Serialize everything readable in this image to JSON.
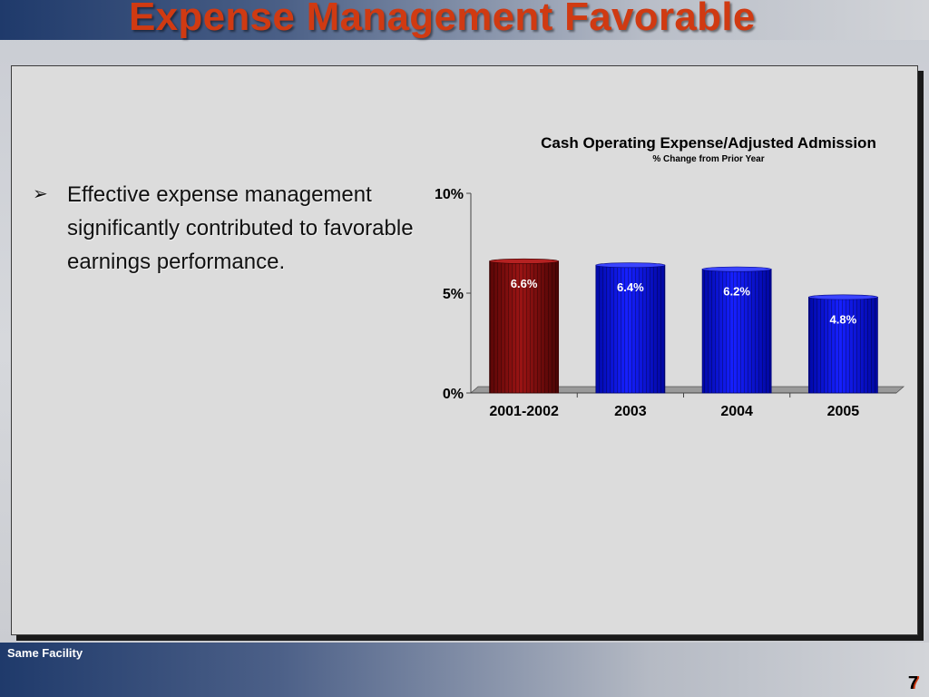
{
  "slide": {
    "title": "Expense Management Favorable",
    "bullet": "Effective expense management significantly contributed to favorable earnings performance.",
    "bullet_symbol": "➢",
    "footer_note": "Same Facility",
    "page_number": "7"
  },
  "colors": {
    "title": "#d03a12",
    "highlight_bar": "#8b0d0d",
    "bar": "#0a10e0"
  },
  "chart_data": {
    "type": "bar",
    "title": "Cash Operating Expense/Adjusted Admission",
    "subtitle": "% Change from Prior Year",
    "categories": [
      "2001-2002",
      "2003",
      "2004",
      "2005"
    ],
    "values": [
      6.6,
      6.4,
      6.2,
      4.8
    ],
    "data_labels": [
      "6.6%",
      "6.4%",
      "6.2%",
      "4.8%"
    ],
    "bar_colors": [
      "#8b0d0d",
      "#0a10e0",
      "#0a10e0",
      "#0a10e0"
    ],
    "yticks": [
      0,
      5,
      10
    ],
    "ytick_labels": [
      "0%",
      "5%",
      "10%"
    ],
    "ylim": [
      0,
      10
    ],
    "xlabel": "",
    "ylabel": "",
    "grid": false,
    "legend": "none"
  }
}
